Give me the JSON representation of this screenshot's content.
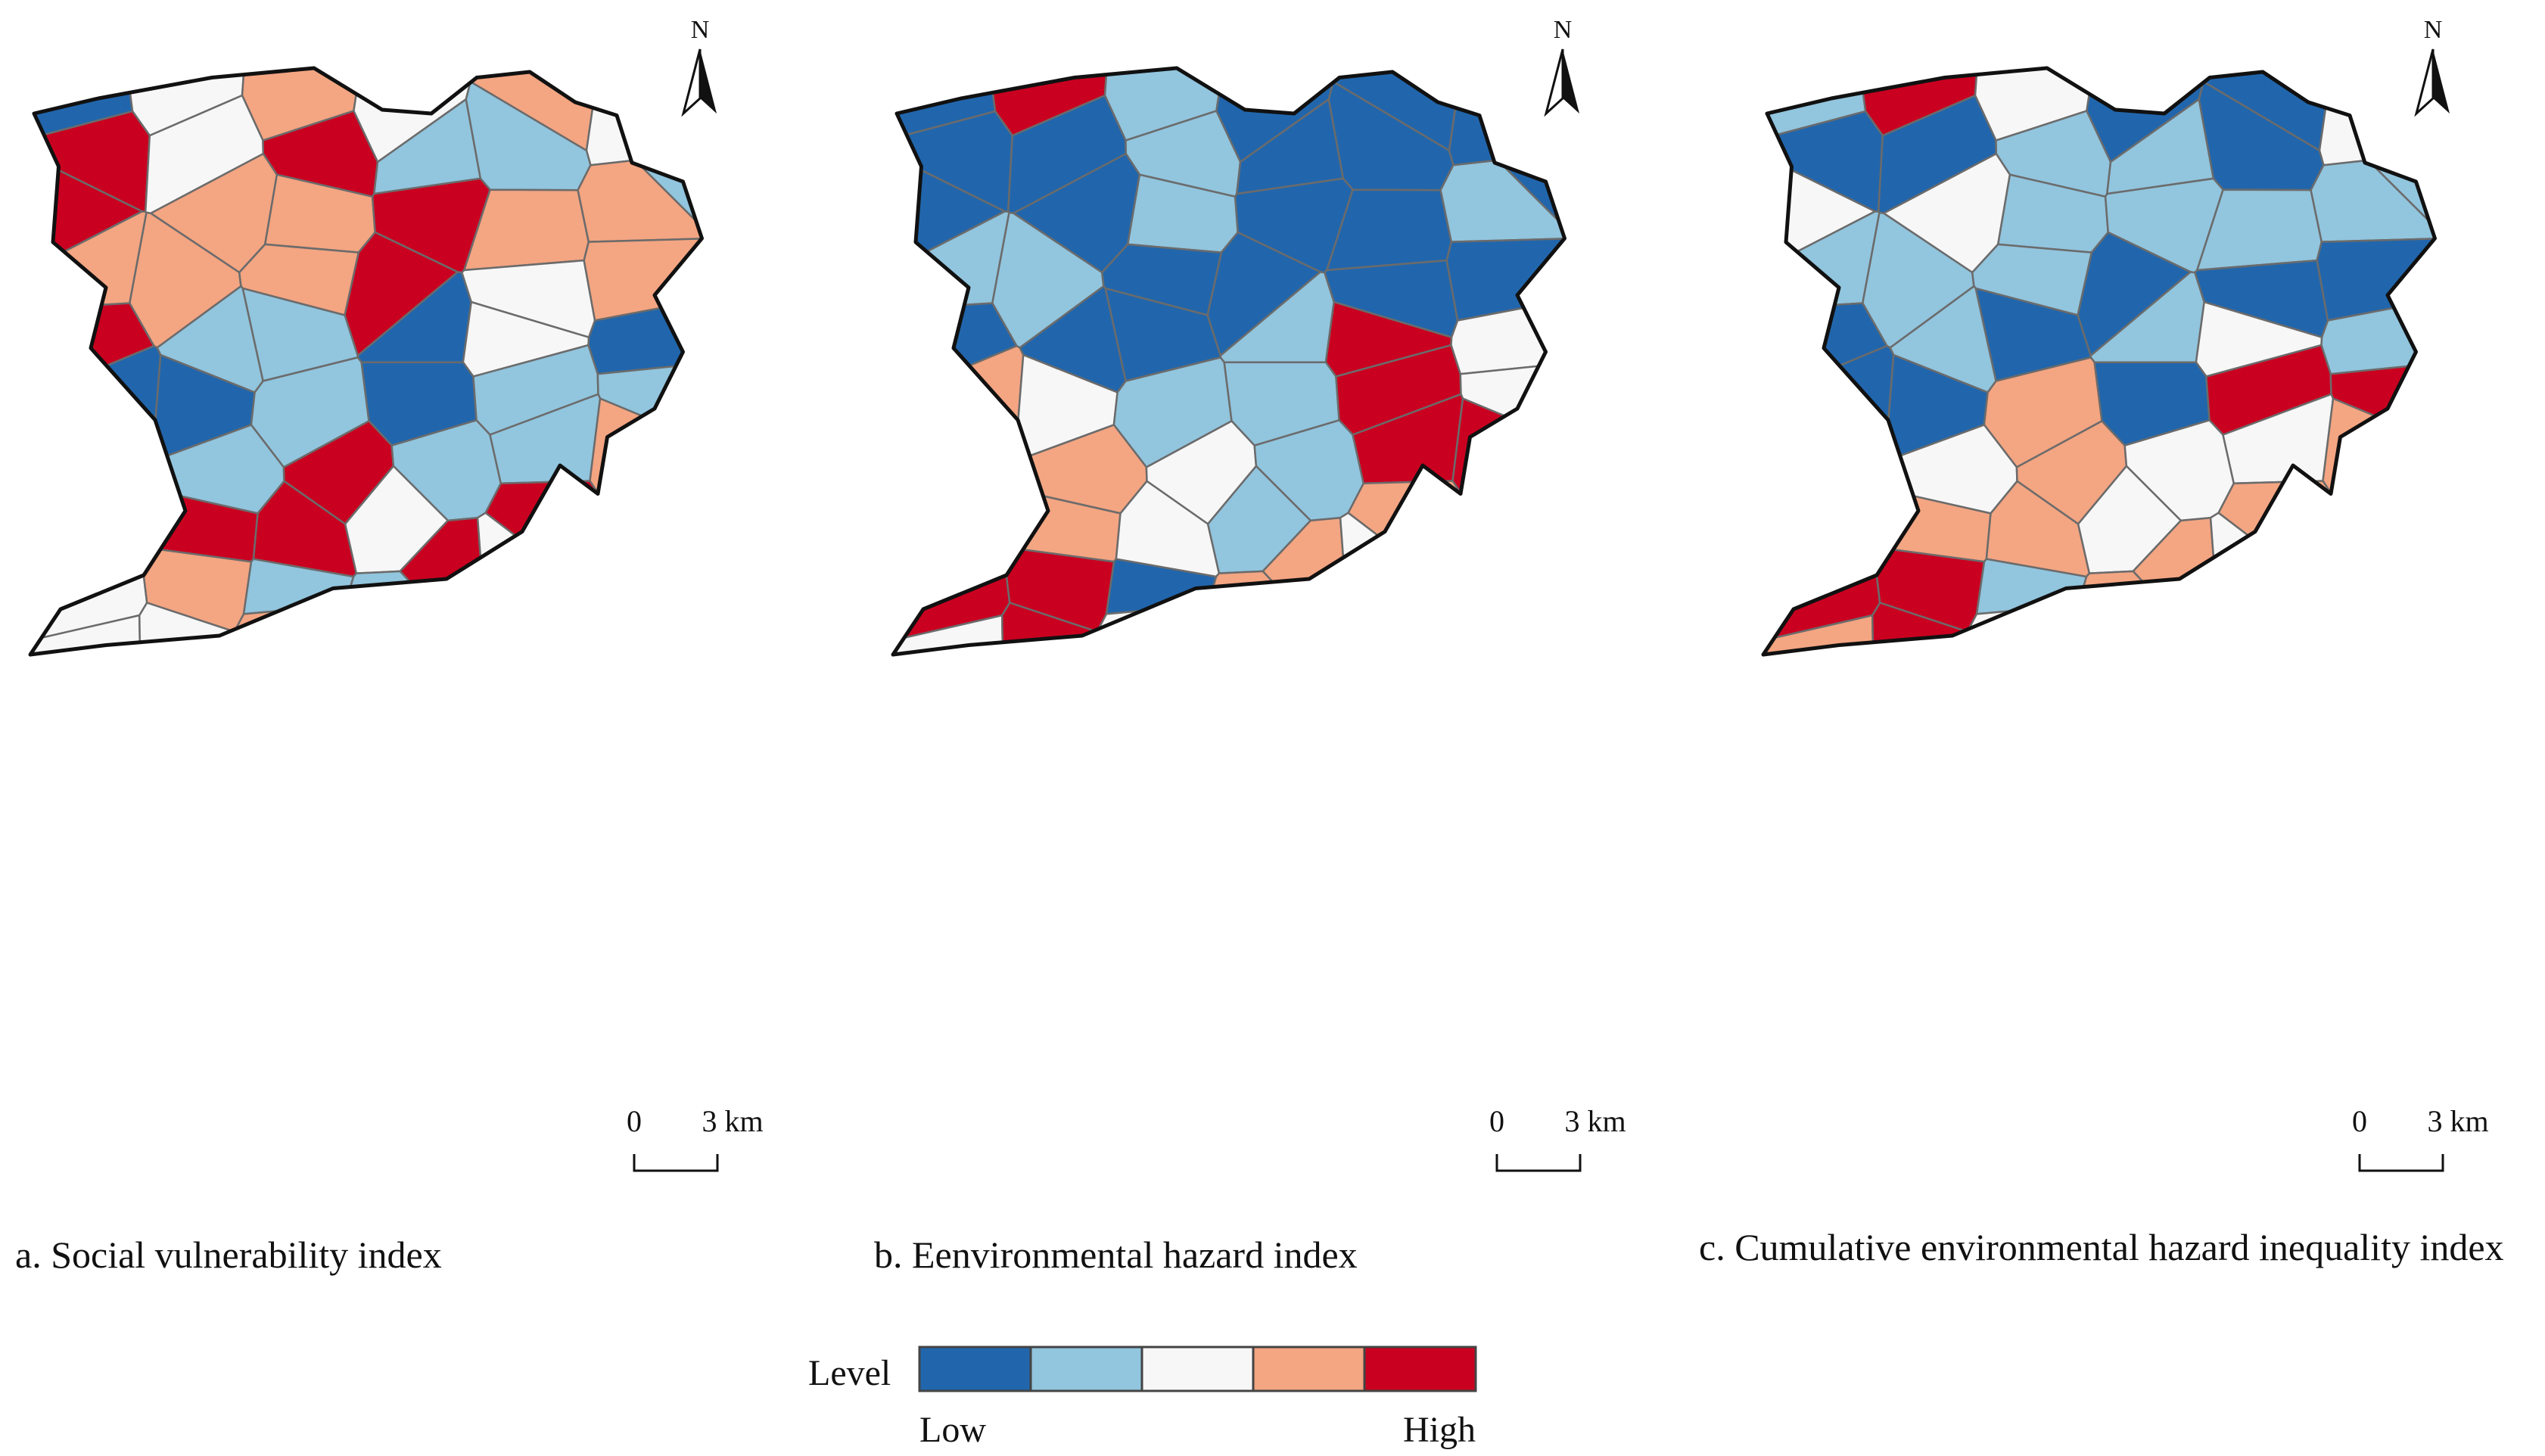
{
  "figure": {
    "panels": [
      {
        "id": "a",
        "caption": "a. Social vulnerability index",
        "north_label": "N",
        "scale_zero": "0",
        "scale_distance": "3 km",
        "region_levels": [
          1,
          3,
          4,
          3,
          4,
          3,
          5,
          3,
          5,
          2,
          2,
          2,
          5,
          4,
          4,
          5,
          4,
          4,
          4,
          4,
          4,
          5,
          3,
          4,
          5,
          2,
          2,
          1,
          3,
          1,
          1,
          1,
          2,
          1,
          2,
          2,
          2,
          2,
          5,
          2,
          2,
          4,
          3,
          5,
          5,
          3,
          5,
          5,
          3,
          4,
          2,
          5,
          3,
          4,
          3,
          3,
          4,
          2,
          3,
          1
        ]
      },
      {
        "id": "b",
        "caption": "b. Eenvironmental hazard index",
        "north_label": "N",
        "scale_zero": "0",
        "scale_distance": "3 km",
        "region_levels": [
          1,
          5,
          2,
          1,
          1,
          1,
          1,
          1,
          2,
          1,
          1,
          1,
          1,
          1,
          2,
          1,
          1,
          2,
          2,
          2,
          1,
          1,
          1,
          1,
          1,
          1,
          1,
          2,
          5,
          3,
          4,
          3,
          2,
          2,
          5,
          3,
          2,
          4,
          3,
          2,
          5,
          5,
          4,
          4,
          3,
          2,
          4,
          5,
          5,
          5,
          1,
          4,
          3,
          5,
          3,
          5,
          3,
          4,
          3,
          1
        ]
      },
      {
        "id": "c",
        "caption": "c. Cumulative environmental hazard inequality index",
        "north_label": "N",
        "scale_zero": "0",
        "scale_distance": "3 km",
        "region_levels": [
          2,
          5,
          3,
          1,
          1,
          3,
          1,
          1,
          2,
          2,
          1,
          2,
          3,
          3,
          2,
          2,
          2,
          2,
          2,
          2,
          2,
          1,
          1,
          1,
          1,
          2,
          1,
          2,
          3,
          2,
          1,
          1,
          4,
          1,
          5,
          5,
          3,
          3,
          4,
          3,
          3,
          4,
          4,
          4,
          4,
          3,
          4,
          5,
          5,
          5,
          2,
          4,
          3,
          5,
          4,
          5,
          3,
          4,
          4,
          1
        ]
      }
    ],
    "legend": {
      "title": "Level",
      "low_label": "Low",
      "high_label": "High",
      "classes": [
        {
          "level": 1,
          "color": "#2166ac"
        },
        {
          "level": 2,
          "color": "#92c5de"
        },
        {
          "level": 3,
          "color": "#f7f7f7"
        },
        {
          "level": 4,
          "color": "#f4a582"
        },
        {
          "level": 5,
          "color": "#ca0020"
        }
      ]
    }
  }
}
